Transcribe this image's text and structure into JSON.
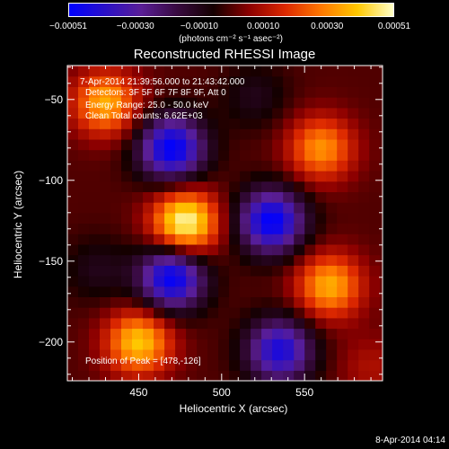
{
  "chart_data": {
    "type": "heatmap",
    "title": "Reconstructed RHESSI Image",
    "xlabel": "Heliocentric X (arcsec)",
    "ylabel": "Heliocentric Y (arcsec)",
    "xlim": [
      407,
      597
    ],
    "ylim": [
      -224,
      -29
    ],
    "xticks": [
      {
        "v": 450,
        "label": "450"
      },
      {
        "v": 500,
        "label": "500"
      },
      {
        "v": 550,
        "label": "550"
      }
    ],
    "yticks": [
      {
        "v": -50,
        "label": "−50"
      },
      {
        "v": -100,
        "label": "−100"
      },
      {
        "v": -150,
        "label": "−150"
      },
      {
        "v": -200,
        "label": "−200"
      }
    ],
    "colorbar": {
      "min": -0.00051,
      "max": 0.00051,
      "ticks": [
        {
          "v": -0.00051,
          "label": "−0.00051"
        },
        {
          "v": -0.0003,
          "label": "−0.00030"
        },
        {
          "v": -0.0001,
          "label": "−0.00010"
        },
        {
          "v": 0.0001,
          "label": "0.00010"
        },
        {
          "v": 0.0003,
          "label": "0.00030"
        },
        {
          "v": 0.00051,
          "label": "0.00051"
        }
      ],
      "units": "(photons cm⁻² s⁻¹ asec⁻²)",
      "colormap": [
        "#0000ff",
        "#2a10c8",
        "#5a1e96",
        "#380a40",
        "#140000",
        "#8c0000",
        "#dc2800",
        "#ff7800",
        "#ffc800",
        "#ffffc8"
      ]
    },
    "peaks": [
      {
        "x": 478,
        "y": -126,
        "value": 0.00051
      },
      {
        "x": 430,
        "y": -52,
        "value": 0.00036
      },
      {
        "x": 560,
        "y": -80,
        "value": 0.00032
      },
      {
        "x": 565,
        "y": -165,
        "value": 0.00036
      },
      {
        "x": 450,
        "y": -200,
        "value": 0.0004
      },
      {
        "x": 520,
        "y": -48,
        "value": -0.0001
      },
      {
        "x": 425,
        "y": -155,
        "value": -0.0001
      },
      {
        "x": 590,
        "y": -215,
        "value": 0.0001
      },
      {
        "x": 470,
        "y": -80,
        "value": -0.00051
      },
      {
        "x": 530,
        "y": -125,
        "value": -0.00051
      },
      {
        "x": 470,
        "y": -160,
        "value": -0.00051
      },
      {
        "x": 535,
        "y": -205,
        "value": -0.00044
      }
    ]
  },
  "annotations": {
    "time_range": "7-Apr-2014 21:39:56.000 to 21:43:42.000",
    "detectors": "Detectors: 3F 5F 6F 7F 8F 9F, Att 0",
    "energy": "Energy Range: 25.0 - 50.0 keV",
    "clean": "Clean    Total counts: 6.62E+03",
    "peak_position": "Position of Peak = [478,-126]"
  },
  "timestamp": "8-Apr-2014 04:14"
}
